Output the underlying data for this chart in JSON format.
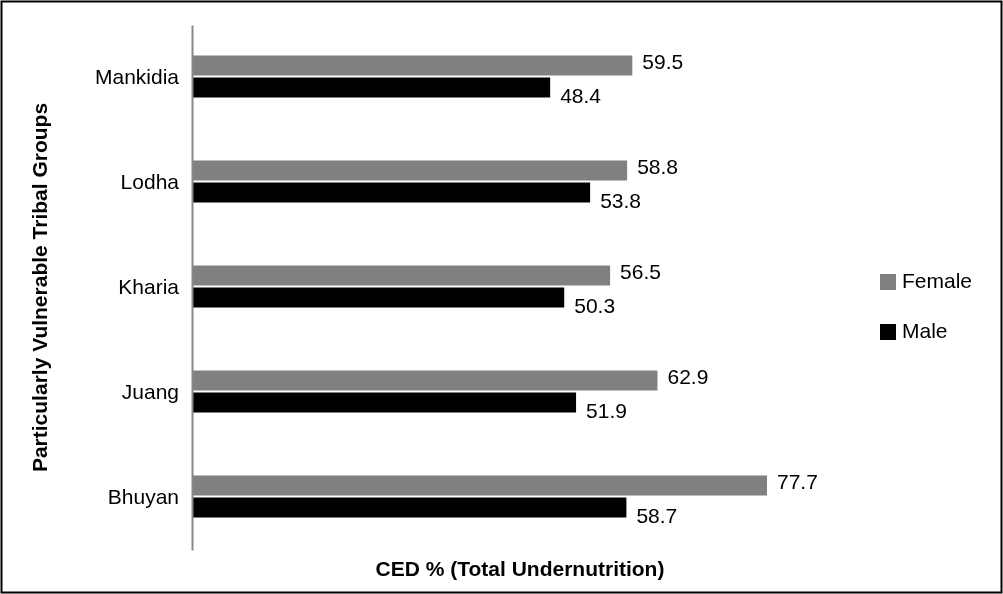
{
  "chart_data": {
    "type": "bar",
    "orientation": "horizontal",
    "xlabel": "CED % (Total Undernutrition)",
    "ylabel": "Particularly Vulnerable Tribal Groups",
    "categories": [
      "Mankidia",
      "Lodha",
      "Kharia",
      "Juang",
      "Bhuyan"
    ],
    "series": [
      {
        "name": "Female",
        "color": "#808080",
        "values": [
          59.5,
          58.8,
          56.5,
          62.9,
          77.7
        ]
      },
      {
        "name": "Male",
        "color": "#000000",
        "values": [
          48.4,
          53.8,
          50.3,
          51.9,
          58.7
        ]
      }
    ],
    "data_labels": true,
    "legend": "right"
  }
}
